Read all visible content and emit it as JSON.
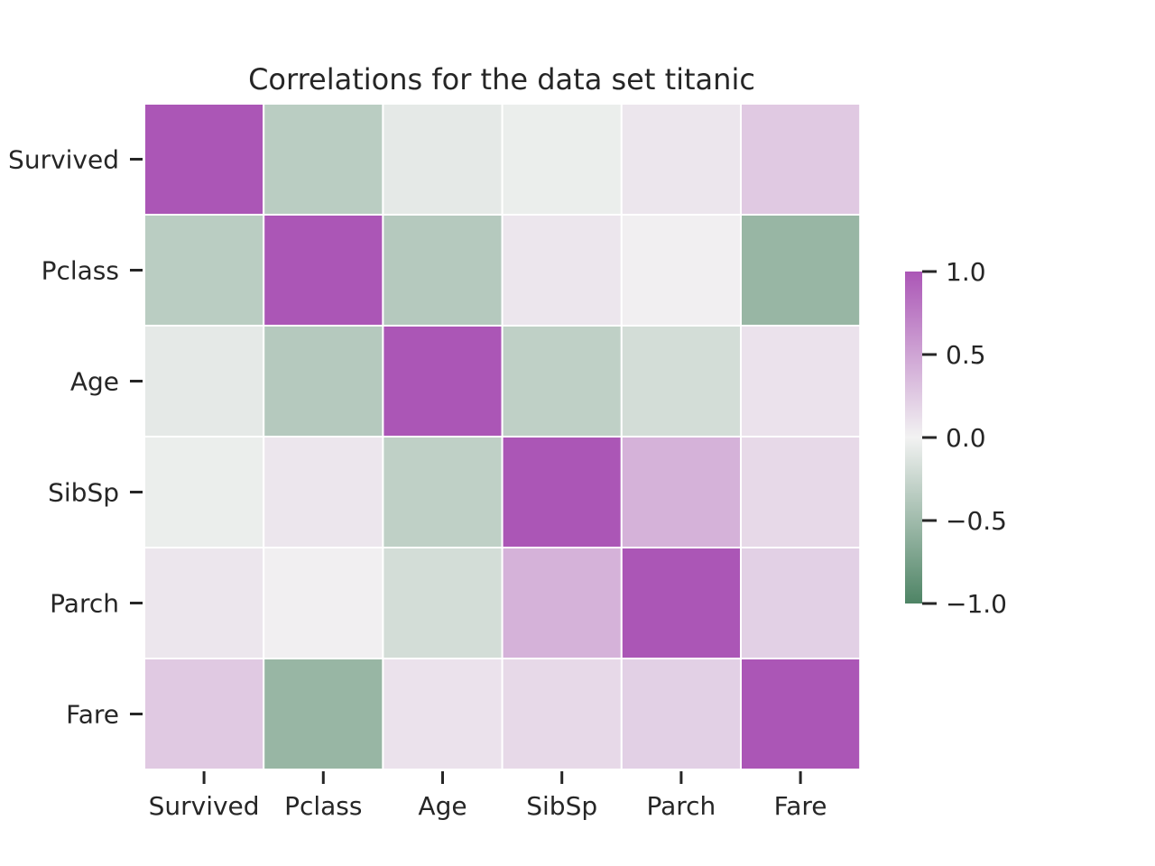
{
  "chart_data": {
    "type": "heatmap",
    "title": "Correlations for the data set titanic",
    "row_labels": [
      "Survived",
      "Pclass",
      "Age",
      "SibSp",
      "Parch",
      "Fare"
    ],
    "col_labels": [
      "Survived",
      "Pclass",
      "Age",
      "SibSp",
      "Parch",
      "Fare"
    ],
    "values": [
      [
        1.0,
        -0.34,
        -0.08,
        -0.04,
        0.08,
        0.26
      ],
      [
        -0.34,
        1.0,
        -0.37,
        0.08,
        0.02,
        -0.55
      ],
      [
        -0.08,
        -0.37,
        1.0,
        -0.31,
        -0.19,
        0.1
      ],
      [
        -0.04,
        0.08,
        -0.31,
        1.0,
        0.41,
        0.16
      ],
      [
        0.08,
        0.02,
        -0.19,
        0.41,
        1.0,
        0.22
      ],
      [
        0.26,
        -0.55,
        0.1,
        0.16,
        0.22,
        1.0
      ]
    ],
    "colorbar": {
      "range": [
        -1.0,
        1.0
      ],
      "ticks": [
        1.0,
        0.5,
        0.0,
        -0.5,
        -1.0
      ],
      "tick_labels": [
        "1.0",
        "0.5",
        "0.0",
        "−0.5",
        "−1.0"
      ],
      "color_low": "#4e8465",
      "color_mid": "#f2f2f2",
      "color_high": "#ab56b6"
    },
    "grid": false,
    "legend": "colorbar-right"
  }
}
